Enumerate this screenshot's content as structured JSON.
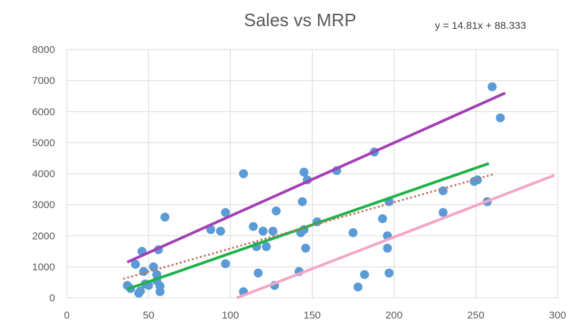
{
  "chart_data": {
    "type": "scatter",
    "title": "Sales vs MRP",
    "trendline_equation": "y = 14.81x + 88.333",
    "xlim": [
      0,
      300
    ],
    "ylim": [
      0,
      8000
    ],
    "x_ticks": [
      "0",
      "50",
      "100",
      "150",
      "200",
      "250",
      "300"
    ],
    "y_ticks": [
      "0",
      "1000",
      "2000",
      "3000",
      "4000",
      "5000",
      "6000",
      "7000",
      "8000"
    ],
    "grid": true,
    "legend": "none",
    "series": [
      {
        "points": [
          [
            37,
            400
          ],
          [
            39,
            300
          ],
          [
            42,
            1080
          ],
          [
            44,
            150
          ],
          [
            45,
            220
          ],
          [
            46,
            1500
          ],
          [
            47,
            850
          ],
          [
            48,
            450
          ],
          [
            50,
            400
          ],
          [
            53,
            1000
          ],
          [
            55,
            750
          ],
          [
            55,
            550
          ],
          [
            56,
            1550
          ],
          [
            57,
            200
          ],
          [
            57,
            380
          ],
          [
            60,
            2600
          ],
          [
            88,
            2200
          ],
          [
            94,
            2150
          ],
          [
            97,
            2750
          ],
          [
            97,
            1100
          ],
          [
            108,
            4000
          ],
          [
            108,
            200
          ],
          [
            114,
            2300
          ],
          [
            116,
            1650
          ],
          [
            117,
            800
          ],
          [
            120,
            2150
          ],
          [
            122,
            1650
          ],
          [
            126,
            2150
          ],
          [
            127,
            400
          ],
          [
            128,
            2800
          ],
          [
            142,
            850
          ],
          [
            143,
            2100
          ],
          [
            144,
            3100
          ],
          [
            145,
            4050
          ],
          [
            145,
            2200
          ],
          [
            146,
            1600
          ],
          [
            147,
            3800
          ],
          [
            153,
            2450
          ],
          [
            165,
            4100
          ],
          [
            175,
            2100
          ],
          [
            178,
            350
          ],
          [
            182,
            750
          ],
          [
            188,
            4700
          ],
          [
            193,
            2550
          ],
          [
            196,
            2000
          ],
          [
            196,
            1600
          ],
          [
            197,
            3100
          ],
          [
            197,
            800
          ],
          [
            230,
            3450
          ],
          [
            230,
            2750
          ],
          [
            249,
            3750
          ],
          [
            251,
            3800
          ],
          [
            257,
            3100
          ],
          [
            260,
            6800
          ],
          [
            265,
            5800
          ]
        ],
        "color": "#5B9BD5"
      }
    ],
    "lines": [
      {
        "x": [
          37,
          268
        ],
        "y": [
          1150,
          6600
        ],
        "color": "#A33FB5",
        "style": "solid"
      },
      {
        "x": [
          37,
          258
        ],
        "y": [
          280,
          4330
        ],
        "color": "#1DB34A",
        "style": "solid"
      },
      {
        "x": [
          35,
          262
        ],
        "y": [
          620,
          4000
        ],
        "color": "#C0715B",
        "style": "dotted"
      },
      {
        "x": [
          104,
          298
        ],
        "y": [
          0,
          3950
        ],
        "color": "#F4A6C7",
        "style": "solid"
      }
    ]
  }
}
